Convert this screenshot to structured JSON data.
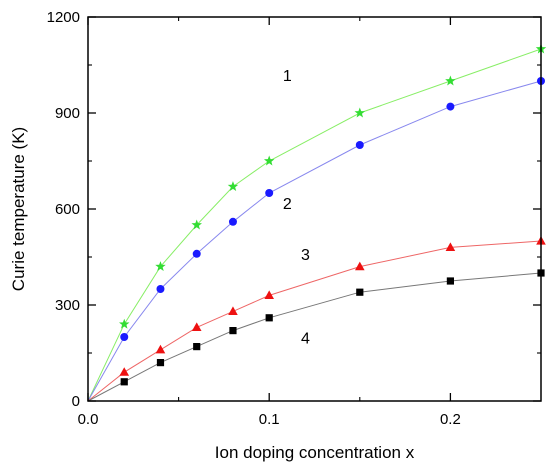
{
  "chart_data": {
    "type": "line",
    "xlabel": "Ion doping concentration x",
    "ylabel": "Curie temperature (K)",
    "xlim": [
      0,
      0.25
    ],
    "ylim": [
      0,
      1200
    ],
    "x_ticks": [
      0.0,
      0.1,
      0.2
    ],
    "x_tick_labels": [
      "0.0",
      "0.1",
      "0.2"
    ],
    "y_ticks": [
      0,
      300,
      600,
      900,
      1200
    ],
    "y_tick_labels": [
      "0",
      "300",
      "600",
      "900",
      "1200"
    ],
    "grid": false,
    "x": [
      0,
      0.02,
      0.04,
      0.06,
      0.08,
      0.1,
      0.15,
      0.2,
      0.25
    ],
    "series": [
      {
        "name": "1",
        "marker": "star",
        "marker_color": "#33dd33",
        "line_color": "#88ee66",
        "values": [
          0,
          240,
          420,
          550,
          670,
          750,
          900,
          1000,
          1100
        ]
      },
      {
        "name": "2",
        "marker": "circle",
        "marker_color": "#1a1aff",
        "line_color": "#8888ee",
        "values": [
          0,
          200,
          350,
          460,
          560,
          650,
          800,
          920,
          1000
        ]
      },
      {
        "name": "3",
        "marker": "triangle",
        "marker_color": "#ee1111",
        "line_color": "#ee6666",
        "values": [
          0,
          90,
          160,
          230,
          280,
          330,
          420,
          480,
          500
        ]
      },
      {
        "name": "4",
        "marker": "square",
        "marker_color": "#000000",
        "line_color": "#777777",
        "values": [
          0,
          60,
          120,
          170,
          220,
          260,
          340,
          375,
          400
        ]
      }
    ],
    "annotations": [
      {
        "text": "1",
        "x": 0.11,
        "y": 1000
      },
      {
        "text": "2",
        "x": 0.11,
        "y": 600
      },
      {
        "text": "3",
        "x": 0.12,
        "y": 440
      },
      {
        "text": "4",
        "x": 0.12,
        "y": 180
      }
    ]
  }
}
